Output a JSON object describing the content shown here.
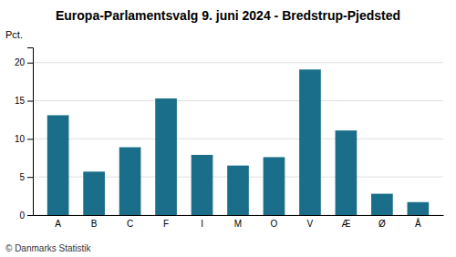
{
  "chart_data": {
    "type": "bar",
    "title": "Europa-Parlamentsvalg 9. juni 2024 - Bredstrup-Pjedsted",
    "ylabel": "Pct.",
    "annotations": [
      "© Danmarks Statistik"
    ],
    "categories": [
      "A",
      "B",
      "C",
      "F",
      "I",
      "M",
      "O",
      "V",
      "Æ",
      "Ø",
      "Å"
    ],
    "values": [
      13.1,
      5.7,
      8.9,
      15.3,
      7.9,
      6.5,
      7.6,
      19.1,
      11.1,
      2.8,
      1.7
    ],
    "color": "#1a6e8a",
    "ylim": [
      0,
      22
    ],
    "yticks": [
      0,
      5,
      10,
      15,
      20
    ],
    "grid": true
  }
}
